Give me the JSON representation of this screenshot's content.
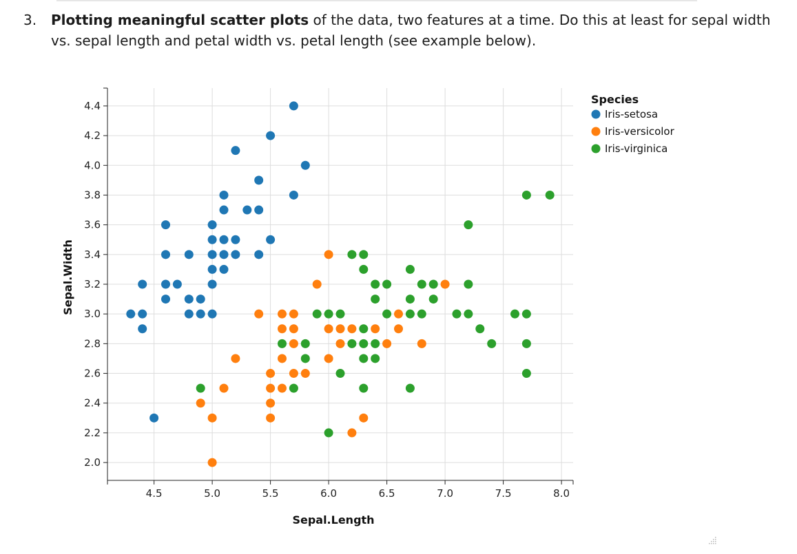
{
  "task": {
    "number": "3.",
    "bold": "Plotting meaningful scatter plots",
    "rest": " of the data, two features at a time. Do this at least for sepal width vs. sepal length and petal width vs. petal length (see example below)."
  },
  "icons": {
    "resize": "resize-grip-icon"
  },
  "chart_data": {
    "type": "scatter",
    "xlabel": "Sepal.Length",
    "ylabel": "Sepal.Width",
    "xlim": [
      4.1,
      8.1
    ],
    "ylim": [
      1.88,
      4.52
    ],
    "xticks": [
      "4.5",
      "5.0",
      "5.5",
      "6.0",
      "6.5",
      "7.0",
      "7.5",
      "8.0"
    ],
    "yticks": [
      "2.0",
      "2.2",
      "2.4",
      "2.6",
      "2.8",
      "3.0",
      "3.2",
      "3.4",
      "3.6",
      "3.8",
      "4.0",
      "4.2",
      "4.4"
    ],
    "grid": true,
    "legend": {
      "title": "Species",
      "placement": "top-right"
    },
    "series": [
      {
        "name": "Iris-setosa",
        "color": "#1f77b4",
        "points": [
          [
            5.7,
            4.4
          ],
          [
            5.5,
            4.2
          ],
          [
            5.2,
            4.1
          ],
          [
            5.8,
            4.0
          ],
          [
            5.4,
            3.9
          ],
          [
            5.1,
            3.8
          ],
          [
            5.7,
            3.8
          ],
          [
            5.1,
            3.7
          ],
          [
            5.3,
            3.7
          ],
          [
            5.4,
            3.7
          ],
          [
            4.6,
            3.6
          ],
          [
            5.0,
            3.6
          ],
          [
            5.0,
            3.5
          ],
          [
            5.1,
            3.5
          ],
          [
            5.2,
            3.5
          ],
          [
            5.5,
            3.5
          ],
          [
            4.6,
            3.4
          ],
          [
            4.8,
            3.4
          ],
          [
            5.0,
            3.4
          ],
          [
            5.1,
            3.4
          ],
          [
            5.2,
            3.4
          ],
          [
            5.4,
            3.4
          ],
          [
            5.0,
            3.3
          ],
          [
            5.1,
            3.3
          ],
          [
            4.4,
            3.2
          ],
          [
            4.6,
            3.2
          ],
          [
            4.7,
            3.2
          ],
          [
            5.0,
            3.2
          ],
          [
            4.6,
            3.1
          ],
          [
            4.8,
            3.1
          ],
          [
            4.9,
            3.1
          ],
          [
            4.3,
            3.0
          ],
          [
            4.4,
            3.0
          ],
          [
            4.8,
            3.0
          ],
          [
            4.9,
            3.0
          ],
          [
            5.0,
            3.0
          ],
          [
            4.4,
            2.9
          ],
          [
            4.5,
            2.3
          ]
        ]
      },
      {
        "name": "Iris-versicolor",
        "color": "#ff7f0e",
        "points": [
          [
            6.0,
            3.4
          ],
          [
            5.9,
            3.2
          ],
          [
            7.0,
            3.2
          ],
          [
            5.4,
            3.0
          ],
          [
            5.6,
            3.0
          ],
          [
            5.7,
            3.0
          ],
          [
            6.6,
            3.0
          ],
          [
            5.6,
            2.9
          ],
          [
            5.7,
            2.9
          ],
          [
            6.0,
            2.9
          ],
          [
            6.1,
            2.9
          ],
          [
            6.2,
            2.9
          ],
          [
            6.4,
            2.9
          ],
          [
            6.6,
            2.9
          ],
          [
            5.7,
            2.8
          ],
          [
            6.1,
            2.8
          ],
          [
            6.5,
            2.8
          ],
          [
            6.8,
            2.8
          ],
          [
            5.2,
            2.7
          ],
          [
            5.6,
            2.7
          ],
          [
            6.0,
            2.7
          ],
          [
            5.5,
            2.6
          ],
          [
            5.7,
            2.6
          ],
          [
            5.8,
            2.6
          ],
          [
            5.1,
            2.5
          ],
          [
            5.5,
            2.5
          ],
          [
            5.6,
            2.5
          ],
          [
            4.9,
            2.4
          ],
          [
            5.5,
            2.4
          ],
          [
            5.0,
            2.3
          ],
          [
            5.5,
            2.3
          ],
          [
            6.3,
            2.3
          ],
          [
            6.2,
            2.2
          ],
          [
            5.0,
            2.0
          ]
        ]
      },
      {
        "name": "Iris-virginica",
        "color": "#2ca02c",
        "points": [
          [
            7.7,
            3.8
          ],
          [
            7.9,
            3.8
          ],
          [
            7.2,
            3.6
          ],
          [
            6.2,
            3.4
          ],
          [
            6.3,
            3.4
          ],
          [
            6.3,
            3.3
          ],
          [
            6.7,
            3.3
          ],
          [
            6.4,
            3.2
          ],
          [
            6.5,
            3.2
          ],
          [
            6.8,
            3.2
          ],
          [
            6.9,
            3.2
          ],
          [
            7.2,
            3.2
          ],
          [
            6.4,
            3.1
          ],
          [
            6.7,
            3.1
          ],
          [
            6.9,
            3.1
          ],
          [
            5.9,
            3.0
          ],
          [
            6.0,
            3.0
          ],
          [
            6.1,
            3.0
          ],
          [
            6.5,
            3.0
          ],
          [
            6.7,
            3.0
          ],
          [
            6.8,
            3.0
          ],
          [
            7.1,
            3.0
          ],
          [
            7.2,
            3.0
          ],
          [
            7.6,
            3.0
          ],
          [
            7.7,
            3.0
          ],
          [
            6.3,
            2.9
          ],
          [
            7.3,
            2.9
          ],
          [
            5.6,
            2.8
          ],
          [
            5.8,
            2.8
          ],
          [
            6.2,
            2.8
          ],
          [
            6.3,
            2.8
          ],
          [
            6.4,
            2.8
          ],
          [
            7.4,
            2.8
          ],
          [
            7.7,
            2.8
          ],
          [
            5.8,
            2.7
          ],
          [
            6.3,
            2.7
          ],
          [
            6.4,
            2.7
          ],
          [
            6.1,
            2.6
          ],
          [
            7.7,
            2.6
          ],
          [
            4.9,
            2.5
          ],
          [
            5.7,
            2.5
          ],
          [
            6.3,
            2.5
          ],
          [
            6.7,
            2.5
          ],
          [
            6.0,
            2.2
          ]
        ]
      }
    ]
  }
}
